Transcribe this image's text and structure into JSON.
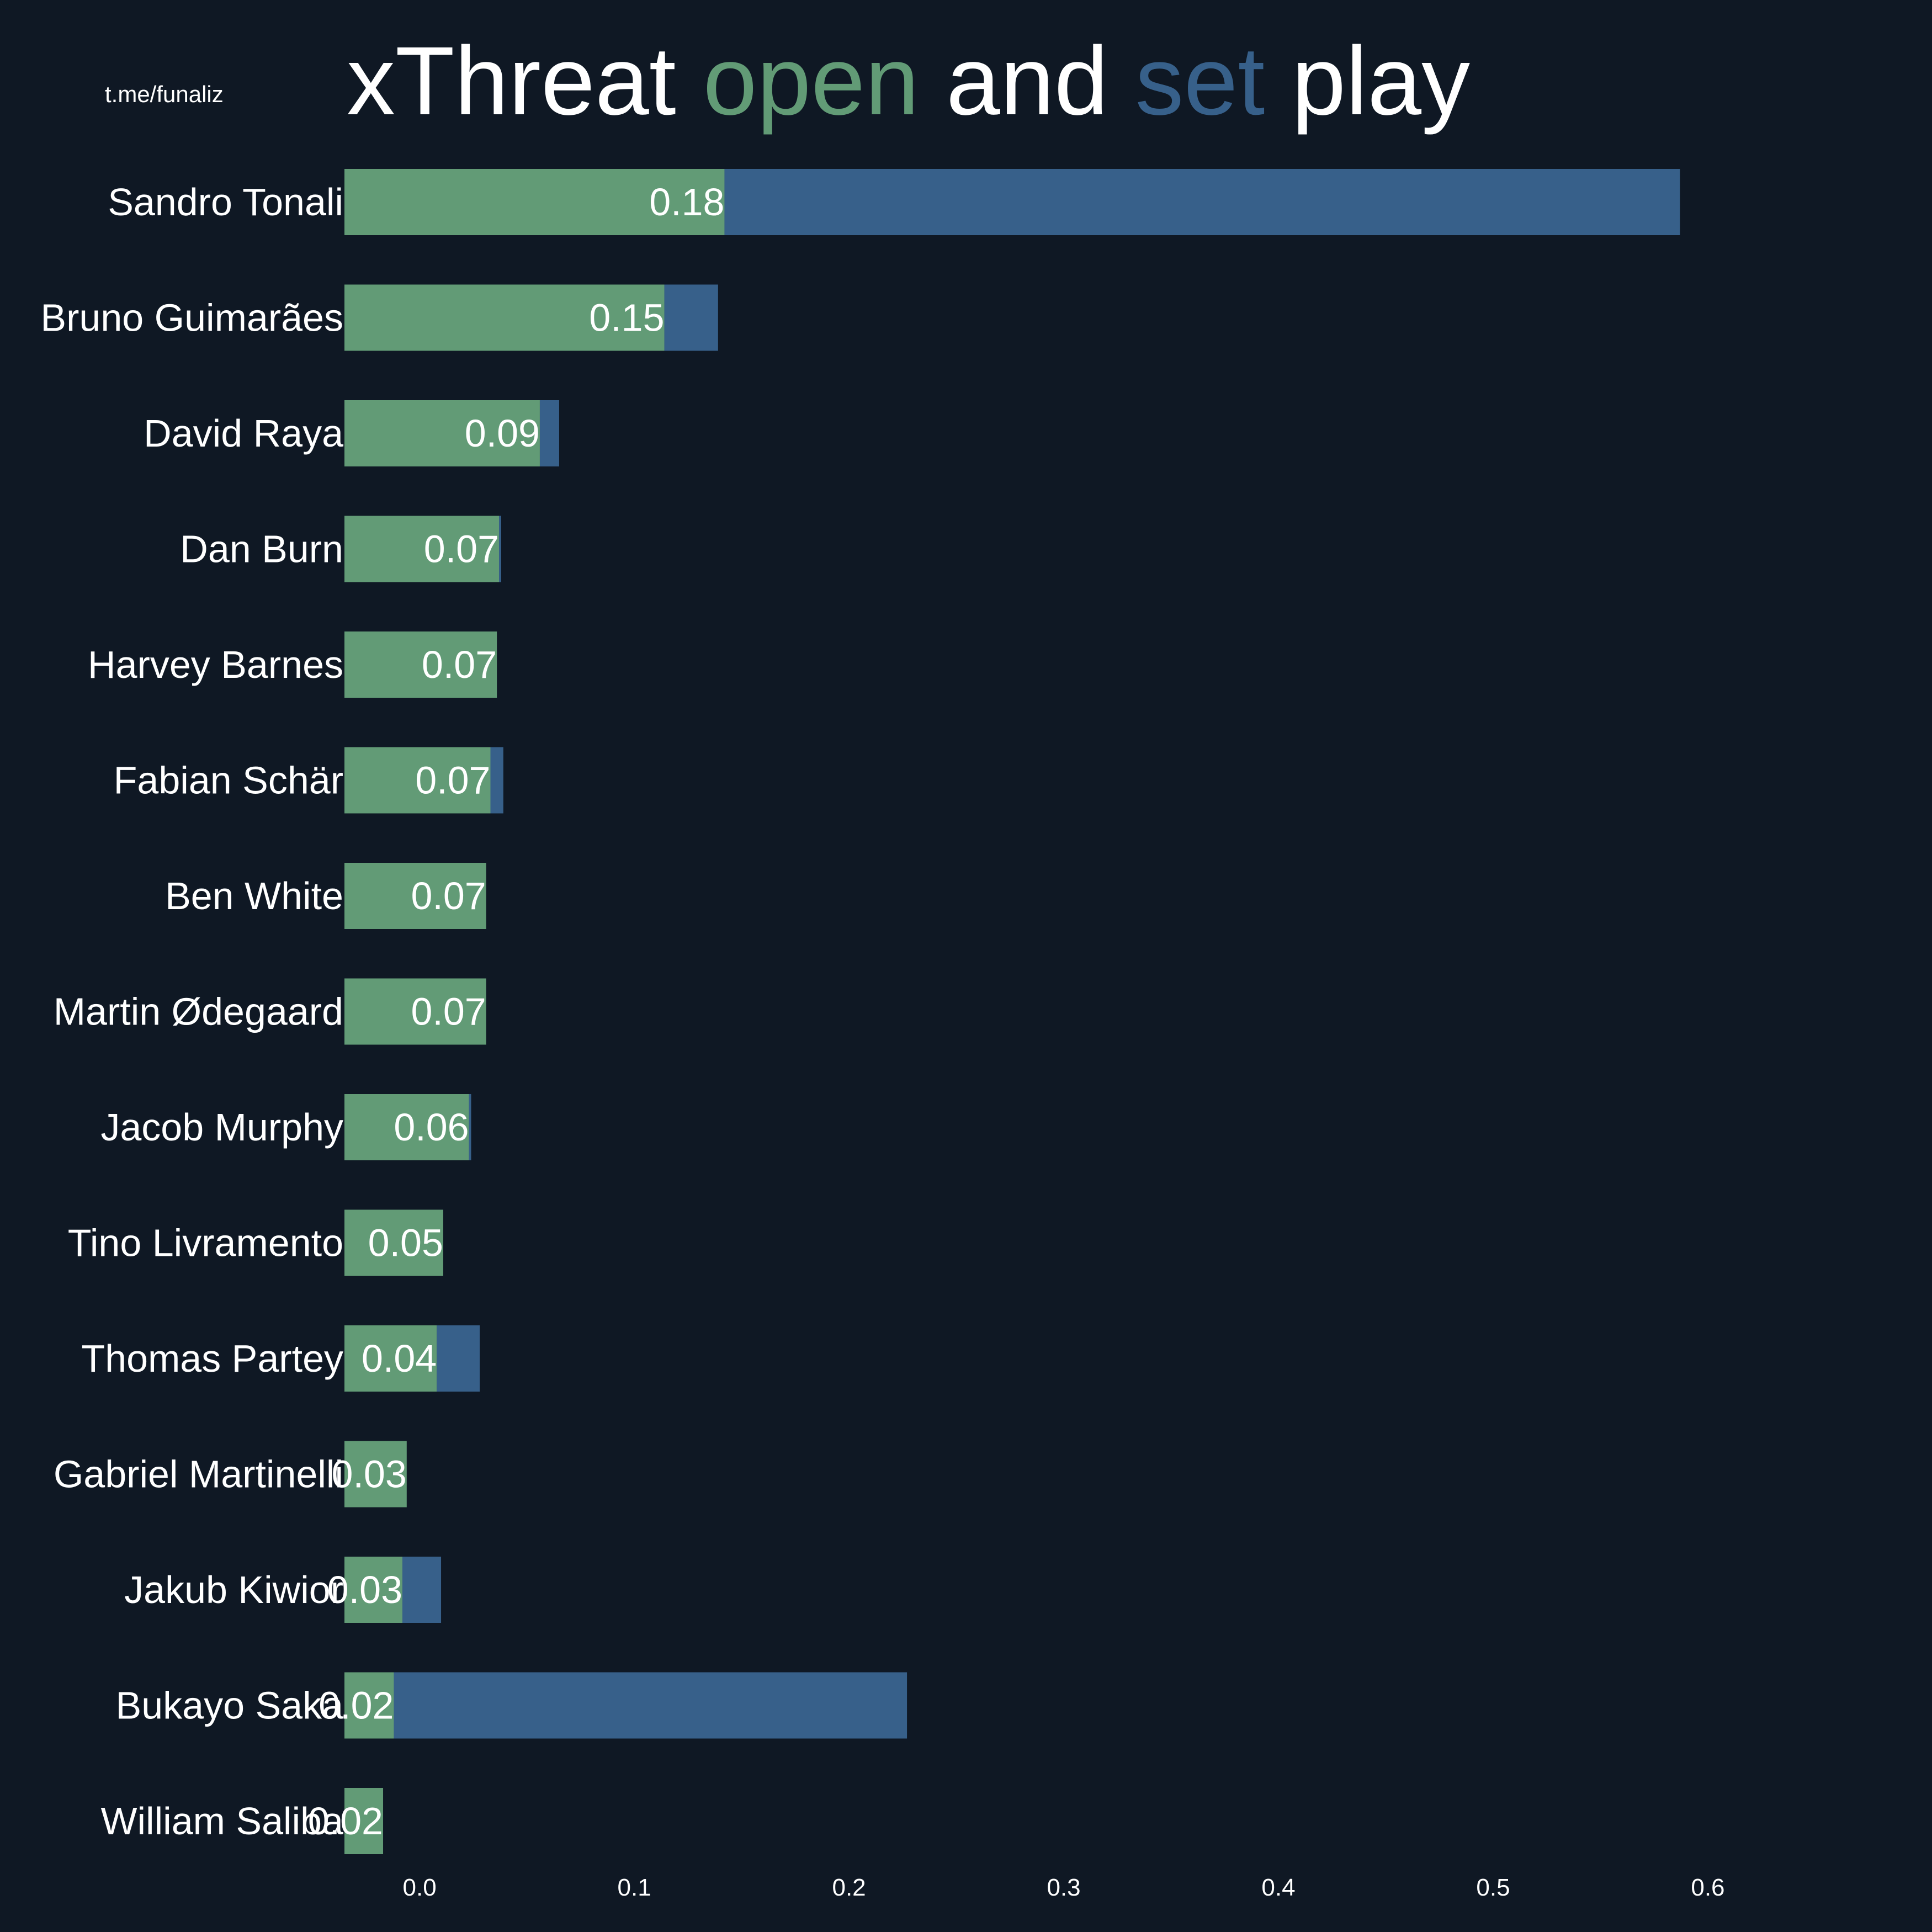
{
  "watermark": "t.me/funaliz",
  "title": {
    "parts": [
      {
        "text": "xThreat ",
        "color": "#ffffff"
      },
      {
        "text": "open",
        "color": "#629b76"
      },
      {
        "text": " and ",
        "color": "#ffffff"
      },
      {
        "text": "set",
        "color": "#37608a"
      },
      {
        "text": " play",
        "color": "#ffffff"
      }
    ]
  },
  "colors": {
    "background": "#0f1824",
    "open": "#629b76",
    "set": "#37608a",
    "text": "#ffffff"
  },
  "chart_data": {
    "type": "bar",
    "orientation": "horizontal",
    "stacked": true,
    "title": "xThreat open and set play",
    "categories": [
      "Sandro Tonali",
      "Bruno Guimarães",
      "David Raya",
      "Dan Burn",
      "Harvey Barnes",
      "Fabian Schär",
      "Ben White",
      "Martin Ødegaard",
      "Jacob Murphy",
      "Tino Livramento",
      "Thomas Partey",
      "Gabriel Martinelli",
      "Jakub Kiwior",
      "Bukayo Saka",
      "William Saliba"
    ],
    "series": [
      {
        "name": "open",
        "color": "#629b76",
        "values": [
          0.177,
          0.149,
          0.091,
          0.072,
          0.071,
          0.068,
          0.066,
          0.066,
          0.058,
          0.046,
          0.043,
          0.029,
          0.027,
          0.023,
          0.018
        ]
      },
      {
        "name": "set",
        "color": "#37608a",
        "values": [
          0.445,
          0.025,
          0.009,
          0.001,
          0.0,
          0.006,
          0.0,
          0.0,
          0.001,
          0.0,
          0.02,
          0.0,
          0.018,
          0.239,
          0.0
        ]
      }
    ],
    "value_labels": [
      "0.18",
      "0.15",
      "0.09",
      "0.07",
      "0.07",
      "0.07",
      "0.07",
      "0.07",
      "0.06",
      "0.05",
      "0.04",
      "0.03",
      "0.03",
      "0.02",
      "0.02"
    ],
    "xticks": [
      "0.0",
      "0.1",
      "0.2",
      "0.3",
      "0.4",
      "0.5",
      "0.6"
    ],
    "xlim": [
      -0.035,
      0.69
    ],
    "grid": false,
    "legend": "none"
  }
}
